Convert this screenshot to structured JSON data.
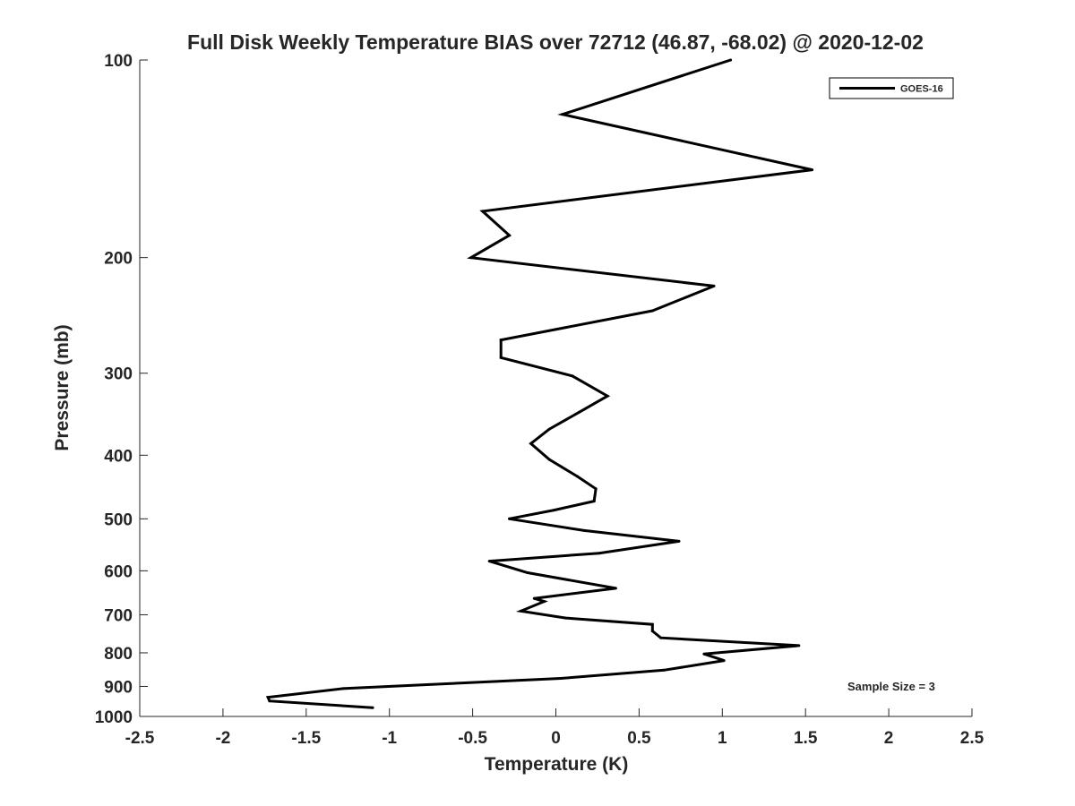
{
  "chart_data": {
    "type": "line",
    "title": "Full Disk Weekly Temperature BIAS over 72712 (46.87, -68.02) @ 2020-12-02",
    "xlabel": "Temperature (K)",
    "ylabel": "Pressure (mb)",
    "xlim": [
      -2.5,
      2.5
    ],
    "ylim": [
      100,
      1000
    ],
    "yscale": "log",
    "y_reversed": true,
    "x_ticks": [
      -2.5,
      -2,
      -1.5,
      -1,
      -0.5,
      0,
      0.5,
      1,
      1.5,
      2,
      2.5
    ],
    "x_tick_labels": [
      "-2.5",
      "-2",
      "-1.5",
      "-1",
      "-0.5",
      "0",
      "0.5",
      "1",
      "1.5",
      "2",
      "2.5"
    ],
    "y_ticks": [
      100,
      200,
      300,
      400,
      500,
      600,
      700,
      800,
      900,
      1000
    ],
    "y_tick_labels": [
      "100",
      "200",
      "300",
      "400",
      "500",
      "600",
      "700",
      "800",
      "900",
      "1000"
    ],
    "grid": false,
    "legend_position": "top-right",
    "annotation": "Sample Size = 3",
    "series": [
      {
        "name": "GOES-16",
        "color": "#000000",
        "x": [
          1.05,
          0.04,
          1.54,
          -0.44,
          -0.28,
          -0.51,
          0.95,
          0.58,
          -0.33,
          -0.33,
          0.1,
          0.31,
          0.14,
          -0.04,
          -0.15,
          -0.04,
          0.13,
          0.24,
          0.23,
          -0.01,
          -0.28,
          0.17,
          0.74,
          0.26,
          -0.4,
          -0.17,
          0.36,
          -0.13,
          -0.07,
          -0.21,
          0.06,
          0.58,
          0.58,
          0.63,
          1.46,
          0.89,
          1.01,
          0.65,
          0.03,
          -1.28,
          -1.73,
          -1.72,
          -1.1
        ],
        "y": [
          100,
          121,
          147,
          170,
          185,
          200,
          221,
          241,
          267,
          284,
          303,
          325,
          344,
          365,
          384,
          406,
          431,
          450,
          470,
          485,
          500,
          521,
          541,
          564,
          580,
          604,
          638,
          661,
          668,
          691,
          708,
          724,
          741,
          759,
          780,
          803,
          822,
          850,
          875,
          907,
          935,
          947,
          970
        ]
      }
    ]
  }
}
